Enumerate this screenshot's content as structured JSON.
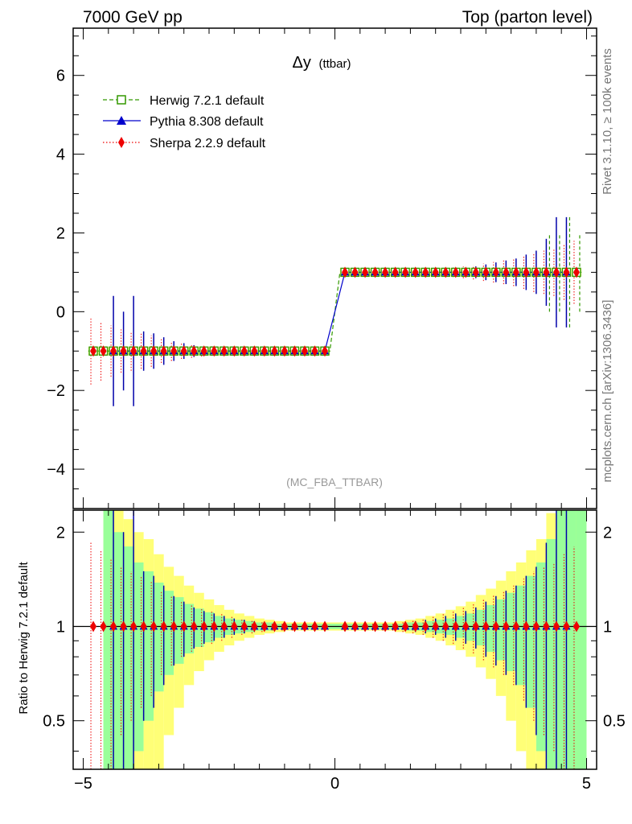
{
  "header": {
    "left": "7000 GeV pp",
    "right": "Top (parton level)"
  },
  "side_labels": {
    "rivet": "Rivet 3.1.10, ≥ 100k events",
    "mcplots": "mcplots.cern.ch [arXiv:1306.3436]"
  },
  "chart_data": [
    {
      "type": "line",
      "title": "Δy",
      "title_suffix": "(ttbar)",
      "analysis": "(MC_FBA_TTBAR)",
      "xlabel": "",
      "ylabel": "",
      "xlim": [
        -5.2,
        5.2
      ],
      "ylim": [
        -5,
        7.2
      ],
      "xticks": [
        -5,
        0,
        5
      ],
      "xtick_labels": [
        "−5",
        "0",
        "5"
      ],
      "yticks": [
        -4,
        -2,
        0,
        2,
        4,
        6
      ],
      "ytick_labels": [
        "−4",
        "−2",
        "0",
        "2",
        "4",
        "6"
      ],
      "legend": [
        {
          "label": "Herwig 7.2.1 default",
          "color": "#339900",
          "marker": "open-square",
          "style": "dashed"
        },
        {
          "label": "Pythia 8.308 default",
          "color": "#0000cc",
          "marker": "triangle",
          "style": "solid"
        },
        {
          "label": "Sherpa 2.2.9 default",
          "color": "#ee0000",
          "marker": "diamond",
          "style": "dotted"
        }
      ],
      "x": [
        -4.8,
        -4.6,
        -4.4,
        -4.2,
        -4.0,
        -3.8,
        -3.6,
        -3.4,
        -3.2,
        -3.0,
        -2.8,
        -2.6,
        -2.4,
        -2.2,
        -2.0,
        -1.8,
        -1.6,
        -1.4,
        -1.2,
        -1.0,
        -0.8,
        -0.6,
        -0.4,
        -0.2,
        0.2,
        0.4,
        0.6,
        0.8,
        1.0,
        1.2,
        1.4,
        1.6,
        1.8,
        2.0,
        2.2,
        2.4,
        2.6,
        2.8,
        3.0,
        3.2,
        3.4,
        3.6,
        3.8,
        4.0,
        4.2,
        4.4,
        4.6,
        4.8
      ],
      "series": [
        {
          "name": "Herwig 7.2.1 default",
          "values": [
            -1,
            -1,
            -1,
            -1,
            -1,
            -1,
            -1,
            -1,
            -1,
            -1,
            -1,
            -1,
            -1,
            -1,
            -1,
            -1,
            -1,
            -1,
            -1,
            -1,
            -1,
            -1,
            -1,
            -1,
            1,
            1,
            1,
            1,
            1,
            1,
            1,
            1,
            1,
            1,
            1,
            1,
            1,
            1,
            1,
            1,
            1,
            1,
            1,
            1,
            1,
            1,
            1,
            1
          ],
          "errors": [
            0,
            0,
            0,
            0,
            0,
            0,
            0,
            0,
            0,
            0,
            0,
            0,
            0,
            0,
            0,
            0,
            0,
            0,
            0,
            0,
            0,
            0,
            0,
            0,
            0,
            0,
            0,
            0,
            0,
            0,
            0,
            0,
            0,
            0,
            0,
            0,
            0,
            0,
            0,
            0,
            0,
            0,
            0,
            0,
            1.0,
            1.0,
            1.4,
            1.0
          ]
        },
        {
          "name": "Pythia 8.308 default",
          "values": [
            null,
            null,
            -1,
            -1,
            -1,
            -1,
            -1,
            -1,
            -1,
            -1,
            -1,
            -1,
            -1,
            -1,
            -1,
            -1,
            -1,
            -1,
            -1,
            -1,
            -1,
            -1,
            -1,
            -1,
            1,
            1,
            1,
            1,
            1,
            1,
            1,
            1,
            1,
            1,
            1,
            1,
            1,
            1,
            1,
            1,
            1,
            1,
            1,
            1,
            1,
            1,
            1,
            null
          ],
          "errors": [
            0,
            0,
            1.4,
            1.0,
            1.4,
            0.5,
            0.45,
            0.35,
            0.25,
            0.2,
            0.15,
            0.12,
            0.1,
            0.08,
            0.06,
            0.05,
            0.04,
            0.03,
            0.03,
            0.02,
            0.02,
            0.02,
            0.02,
            0.02,
            0.02,
            0.02,
            0.02,
            0.02,
            0.02,
            0.03,
            0.03,
            0.04,
            0.05,
            0.06,
            0.08,
            0.1,
            0.12,
            0.15,
            0.2,
            0.25,
            0.3,
            0.35,
            0.45,
            0.55,
            0.85,
            1.4,
            1.4,
            0
          ]
        },
        {
          "name": "Sherpa 2.2.9 default",
          "values": [
            -1,
            -1,
            -1,
            -1,
            -1,
            -1,
            -1,
            -1,
            -1,
            -1,
            -1,
            -1,
            -1,
            -1,
            -1,
            -1,
            -1,
            -1,
            -1,
            -1,
            -1,
            -1,
            -1,
            -1,
            1,
            1,
            1,
            1,
            1,
            1,
            1,
            1,
            1,
            1,
            1,
            1,
            1,
            1,
            1,
            1,
            1,
            1,
            1,
            1,
            1,
            1,
            1,
            1
          ],
          "errors": [
            0.85,
            0.75,
            0.65,
            0.55,
            0.5,
            0.45,
            0.4,
            0.3,
            0.25,
            0.2,
            0.17,
            0.14,
            0.12,
            0.1,
            0.08,
            0.06,
            0.05,
            0.04,
            0.03,
            0.03,
            0.03,
            0.02,
            0.02,
            0.02,
            0.02,
            0.02,
            0.02,
            0.03,
            0.03,
            0.03,
            0.04,
            0.05,
            0.06,
            0.08,
            0.1,
            0.12,
            0.15,
            0.18,
            0.22,
            0.26,
            0.3,
            0.35,
            0.42,
            0.5,
            0.55,
            0.6,
            0.7,
            0.8
          ]
        }
      ]
    },
    {
      "type": "line",
      "title": "",
      "xlabel": "",
      "ylabel": "Ratio to Herwig 7.2.1 default",
      "xlim": [
        -5.2,
        5.2
      ],
      "ylim": [
        0.35,
        2.35
      ],
      "xticks": [
        -5,
        0,
        5
      ],
      "xtick_labels": [
        "−5",
        "0",
        "5"
      ],
      "yticks": [
        0.5,
        1,
        2
      ],
      "ytick_labels": [
        "0.5",
        "1",
        "2"
      ],
      "x": [
        -4.8,
        -4.6,
        -4.4,
        -4.2,
        -4.0,
        -3.8,
        -3.6,
        -3.4,
        -3.2,
        -3.0,
        -2.8,
        -2.6,
        -2.4,
        -2.2,
        -2.0,
        -1.8,
        -1.6,
        -1.4,
        -1.2,
        -1.0,
        -0.8,
        -0.6,
        -0.4,
        -0.2,
        0.2,
        0.4,
        0.6,
        0.8,
        1.0,
        1.2,
        1.4,
        1.6,
        1.8,
        2.0,
        2.2,
        2.4,
        2.6,
        2.8,
        3.0,
        3.2,
        3.4,
        3.6,
        3.8,
        4.0,
        4.2,
        4.4,
        4.6,
        4.8
      ],
      "band_edges": [
        -4.6,
        -4.4,
        -4.2,
        -4.0,
        -3.8,
        -3.6,
        -3.4,
        -3.2,
        -3.0,
        -2.8,
        -2.6,
        -2.4,
        -2.2,
        -2.0,
        -1.8,
        -1.6,
        -1.4,
        -1.2,
        -1.0,
        -0.8,
        -0.6,
        -0.4,
        -0.2,
        0.0,
        0.2,
        0.4,
        0.6,
        0.8,
        1.0,
        1.2,
        1.4,
        1.6,
        1.8,
        2.0,
        2.2,
        2.4,
        2.6,
        2.8,
        3.0,
        3.2,
        3.4,
        3.6,
        3.8,
        4.0,
        4.2,
        4.4,
        4.6,
        4.8,
        5.0
      ],
      "band_yellow": [
        1.4,
        1.4,
        1.2,
        1.0,
        0.9,
        0.7,
        0.55,
        0.45,
        0.35,
        0.28,
        0.22,
        0.17,
        0.13,
        0.1,
        0.08,
        0.06,
        0.05,
        0.04,
        0.03,
        0.03,
        0.03,
        0.03,
        0.03,
        0.03,
        0.03,
        0.03,
        0.03,
        0.03,
        0.03,
        0.04,
        0.05,
        0.06,
        0.08,
        0.1,
        0.13,
        0.16,
        0.2,
        0.26,
        0.32,
        0.4,
        0.5,
        0.6,
        0.75,
        0.9,
        1.3,
        1.4,
        1.4,
        1.4
      ],
      "band_green": [
        1.4,
        1.0,
        0.8,
        0.6,
        0.5,
        0.38,
        0.3,
        0.24,
        0.18,
        0.14,
        0.11,
        0.08,
        0.06,
        0.05,
        0.04,
        0.03,
        0.03,
        0.02,
        0.02,
        0.02,
        0.02,
        0.02,
        0.02,
        0.02,
        0.02,
        0.02,
        0.02,
        0.02,
        0.02,
        0.02,
        0.03,
        0.03,
        0.04,
        0.05,
        0.06,
        0.08,
        0.1,
        0.13,
        0.17,
        0.22,
        0.28,
        0.35,
        0.45,
        0.6,
        0.9,
        1.4,
        1.4,
        1.4
      ],
      "series": [
        {
          "name": "Pythia 8.308 default",
          "values": [
            null,
            null,
            1,
            1,
            1,
            1,
            1,
            1,
            1,
            1,
            1,
            1,
            1,
            1,
            1,
            1,
            1,
            1,
            1,
            1,
            1,
            1,
            1,
            1,
            1,
            1,
            1,
            1,
            1,
            1,
            1,
            1,
            1,
            1,
            1,
            1,
            1,
            1,
            1,
            1,
            1,
            1,
            1,
            1,
            1,
            1,
            1,
            null
          ],
          "errors": [
            0,
            0,
            1.4,
            1.0,
            1.4,
            0.5,
            0.45,
            0.35,
            0.25,
            0.2,
            0.15,
            0.12,
            0.1,
            0.08,
            0.06,
            0.05,
            0.04,
            0.03,
            0.03,
            0.02,
            0.02,
            0.02,
            0.02,
            0.02,
            0.02,
            0.02,
            0.02,
            0.02,
            0.02,
            0.03,
            0.03,
            0.04,
            0.05,
            0.06,
            0.08,
            0.1,
            0.12,
            0.15,
            0.2,
            0.25,
            0.3,
            0.35,
            0.45,
            0.55,
            0.85,
            1.4,
            1.4,
            0
          ]
        },
        {
          "name": "Sherpa 2.2.9 default",
          "values": [
            1,
            1,
            1,
            1,
            1,
            1,
            1,
            1,
            1,
            1,
            1,
            1,
            1,
            1,
            1,
            1,
            1,
            1,
            1,
            1,
            1,
            1,
            1,
            1,
            1,
            1,
            1,
            1,
            1,
            1,
            1,
            1,
            1,
            1,
            1,
            1,
            1,
            1,
            1,
            1,
            1,
            1,
            1,
            1,
            1,
            1,
            1,
            1
          ],
          "errors": [
            0.85,
            0.75,
            0.65,
            0.55,
            0.5,
            0.45,
            0.4,
            0.3,
            0.25,
            0.2,
            0.17,
            0.14,
            0.12,
            0.1,
            0.08,
            0.06,
            0.05,
            0.04,
            0.03,
            0.03,
            0.03,
            0.02,
            0.02,
            0.02,
            0.02,
            0.02,
            0.02,
            0.03,
            0.03,
            0.03,
            0.04,
            0.05,
            0.06,
            0.08,
            0.1,
            0.12,
            0.15,
            0.18,
            0.22,
            0.26,
            0.3,
            0.35,
            0.42,
            0.5,
            0.55,
            0.6,
            0.7,
            0.8
          ]
        }
      ]
    }
  ]
}
